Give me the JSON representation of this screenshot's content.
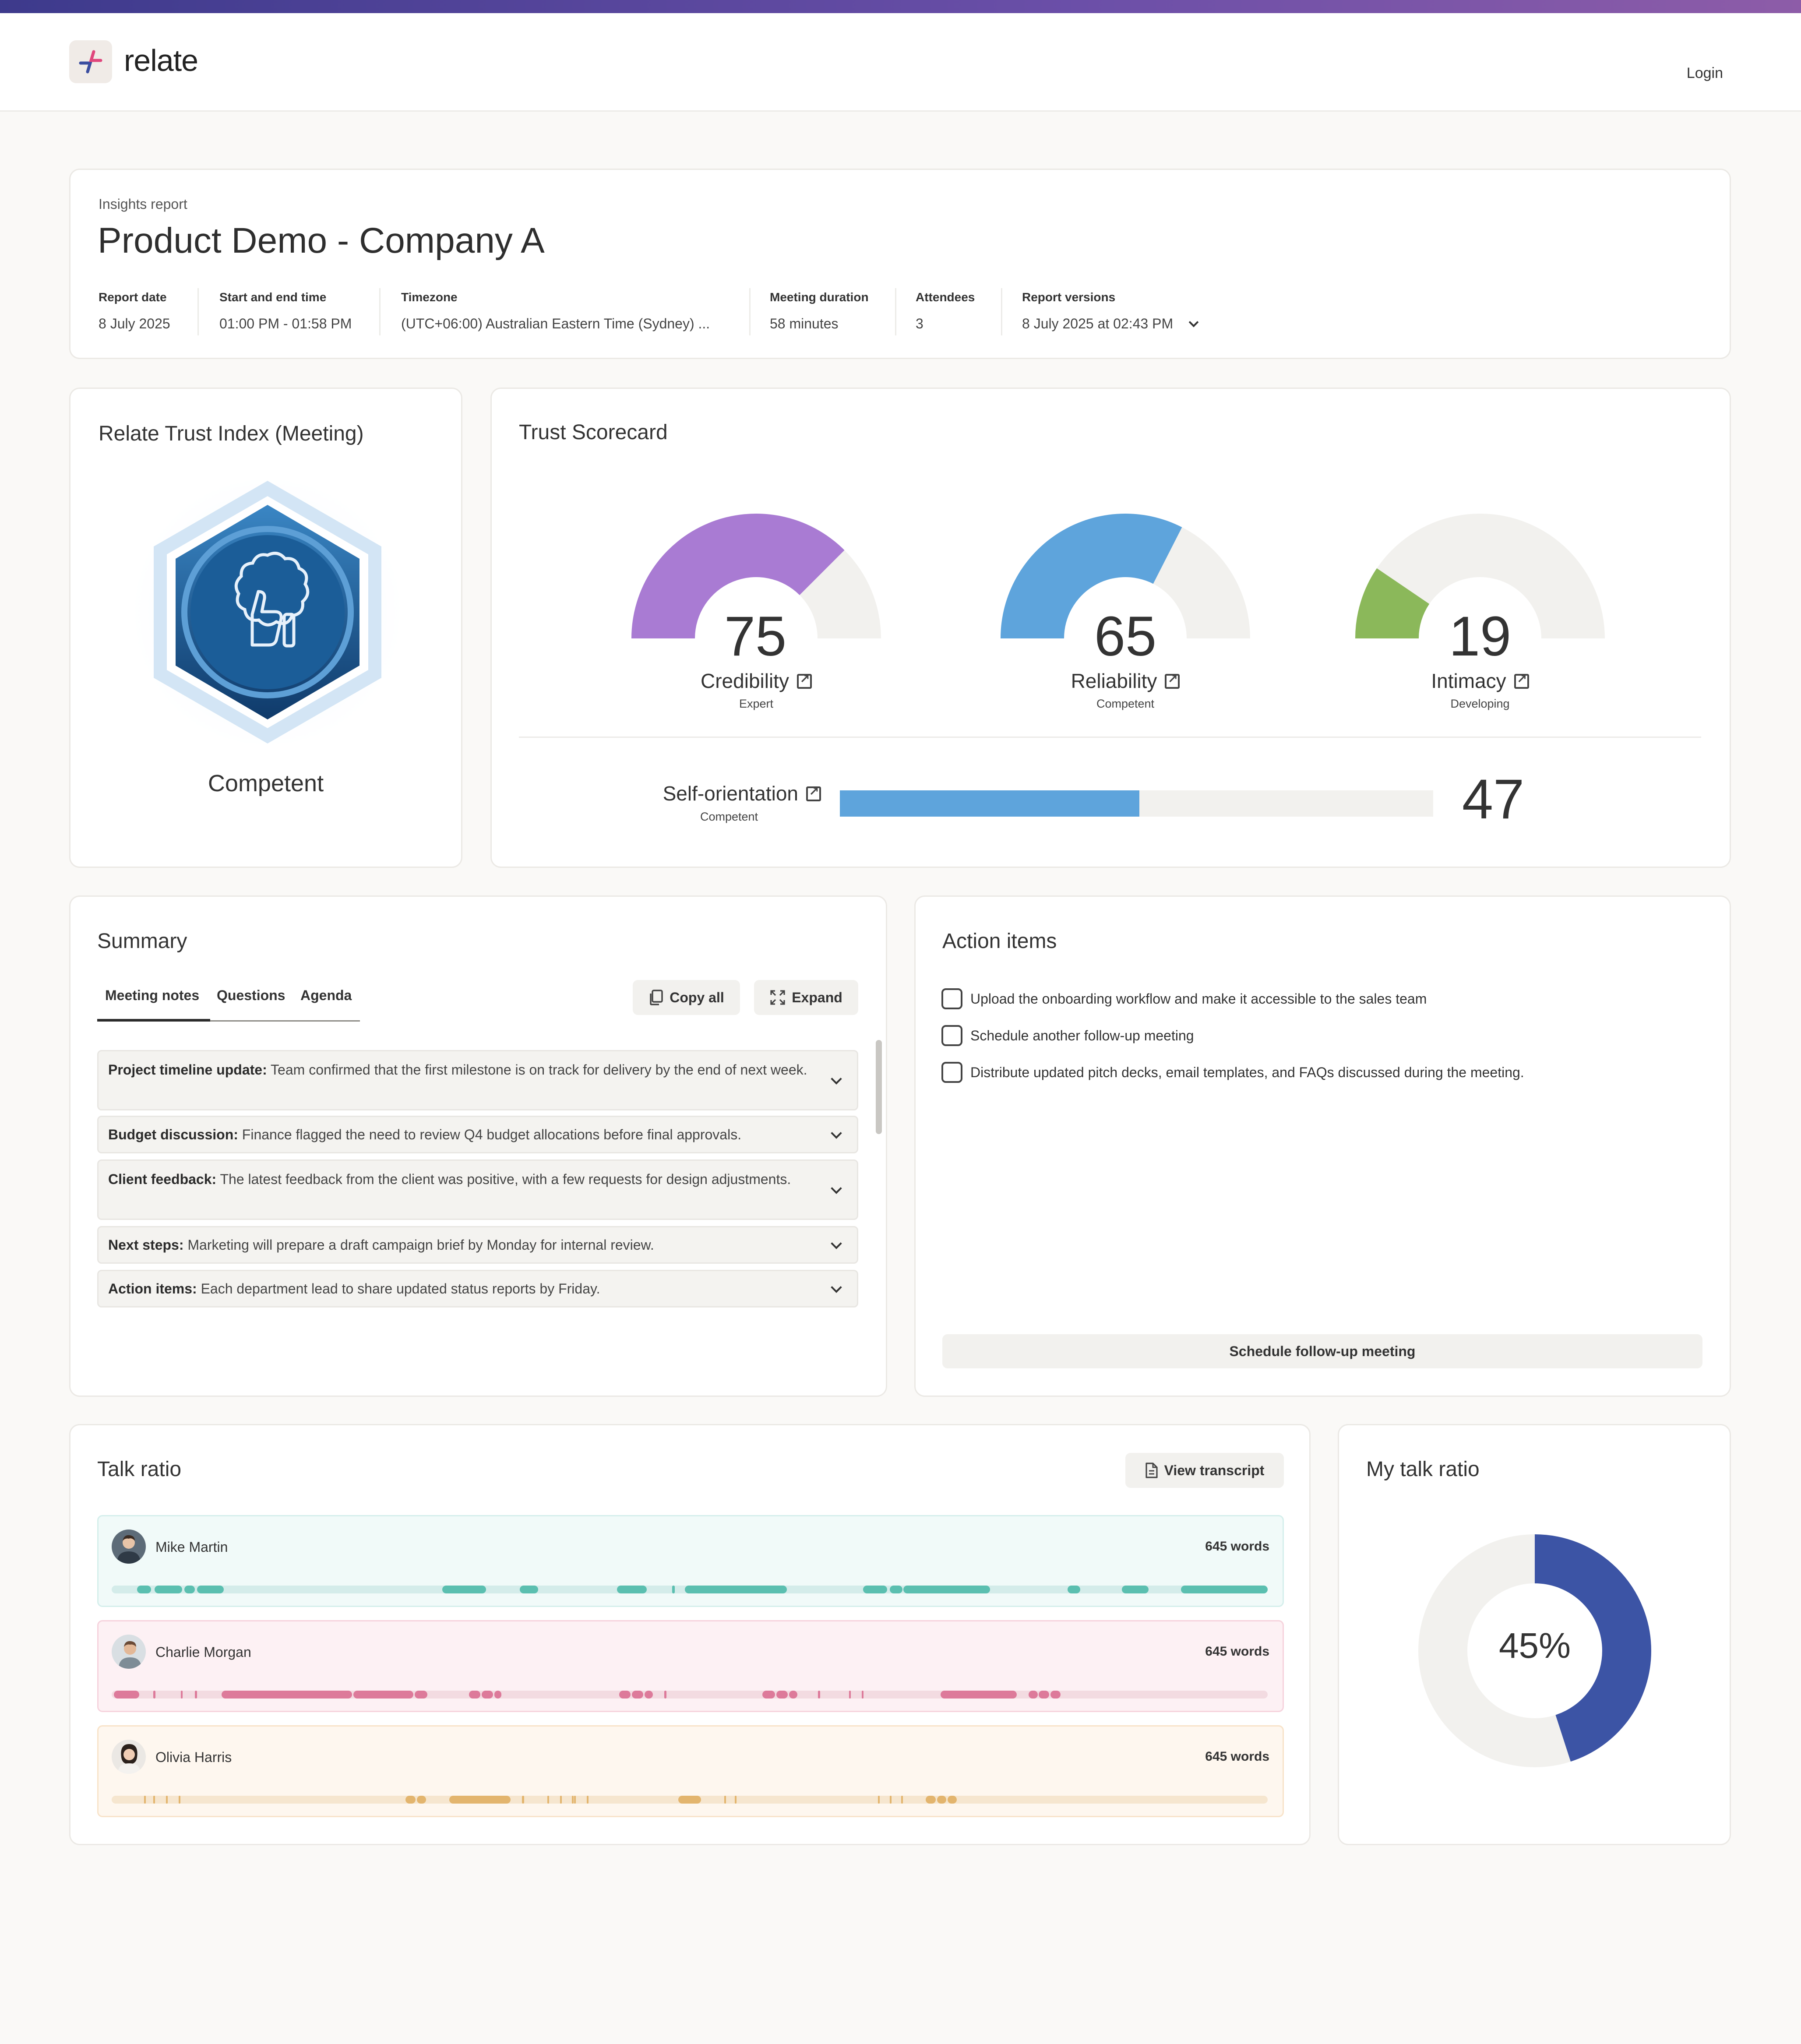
{
  "app": {
    "name": "relate",
    "login_label": "Login"
  },
  "report": {
    "eyebrow": "Insights report",
    "title": "Product Demo - Company A",
    "meta": [
      {
        "label": "Report date",
        "value": "8 July 2025"
      },
      {
        "label": "Start and end time",
        "value": "01:00 PM - 01:58 PM"
      },
      {
        "label": "Timezone",
        "value": "(UTC+06:00) Australian Eastern Time (Sydney) ..."
      },
      {
        "label": "Meeting duration",
        "value": "58 minutes"
      },
      {
        "label": "Attendees",
        "value": "3"
      },
      {
        "label": "Report versions",
        "value": "8 July 2025 at 02:43 PM"
      }
    ]
  },
  "trust_index": {
    "title": "Relate Trust Index (Meeting)",
    "level": "Competent"
  },
  "scorecard": {
    "title": "Trust Scorecard",
    "gauges": [
      {
        "label": "Credibility",
        "value": "75",
        "level": "Expert",
        "color": "#a97bd3"
      },
      {
        "label": "Reliability",
        "value": "65",
        "level": "Competent",
        "color": "#5ea4dc"
      },
      {
        "label": "Intimacy",
        "value": "19",
        "level": "Developing",
        "color": "#8bb85a"
      }
    ],
    "self_orientation": {
      "label": "Self-orientation",
      "value": "47",
      "level": "Competent",
      "fill_fraction": 0.505,
      "color": "#5ea4dc"
    }
  },
  "summary": {
    "title": "Summary",
    "tabs": [
      "Meeting notes",
      "Questions",
      "Agenda"
    ],
    "copy_label": "Copy all",
    "expand_label": "Expand",
    "notes": [
      {
        "heading": "Project timeline update:",
        "text": " Team confirmed that the first milestone is on track for delivery by the end of next week."
      },
      {
        "heading": "Budget discussion:",
        "text": " Finance flagged the need to review Q4 budget allocations before final approvals."
      },
      {
        "heading": "Client feedback:",
        "text": " The latest feedback from the client was positive, with a few requests for design adjustments."
      },
      {
        "heading": "Next steps:",
        "text": " Marketing will prepare a draft campaign brief by Monday for internal review."
      },
      {
        "heading": "Action items:",
        "text": " Each department lead to share updated status reports by Friday."
      }
    ]
  },
  "action_items": {
    "title": "Action items",
    "items": [
      "Upload the onboarding workflow and make it accessible to the sales team",
      "Schedule another follow-up meeting",
      "Distribute updated pitch decks, email templates, and FAQs discussed during the meeting."
    ],
    "button_label": "Schedule follow-up meeting"
  },
  "talk_ratio": {
    "title": "Talk ratio",
    "view_transcript_label": "View transcript",
    "speakers": [
      {
        "name": "Mike Martin",
        "words": "645 words",
        "bg": "#f1faf9",
        "border": "#d5efec",
        "track": "#d4ecea",
        "seg": "#5bbfb0"
      },
      {
        "name": "Charlie Morgan",
        "words": "645 words",
        "bg": "#fdf1f4",
        "border": "#f6d3dd",
        "track": "#f3dbe1",
        "seg": "#dd7a9a"
      },
      {
        "name": "Olivia Harris",
        "words": "645 words",
        "bg": "#fef7ef",
        "border": "#f8e3c9",
        "track": "#f6e6cf",
        "seg": "#e3b56e"
      }
    ]
  },
  "my_talk_ratio": {
    "title": "My talk ratio",
    "value": "45%",
    "fraction": 0.45,
    "color": "#3c54a5",
    "rest_color": "#f2f1ee"
  }
}
